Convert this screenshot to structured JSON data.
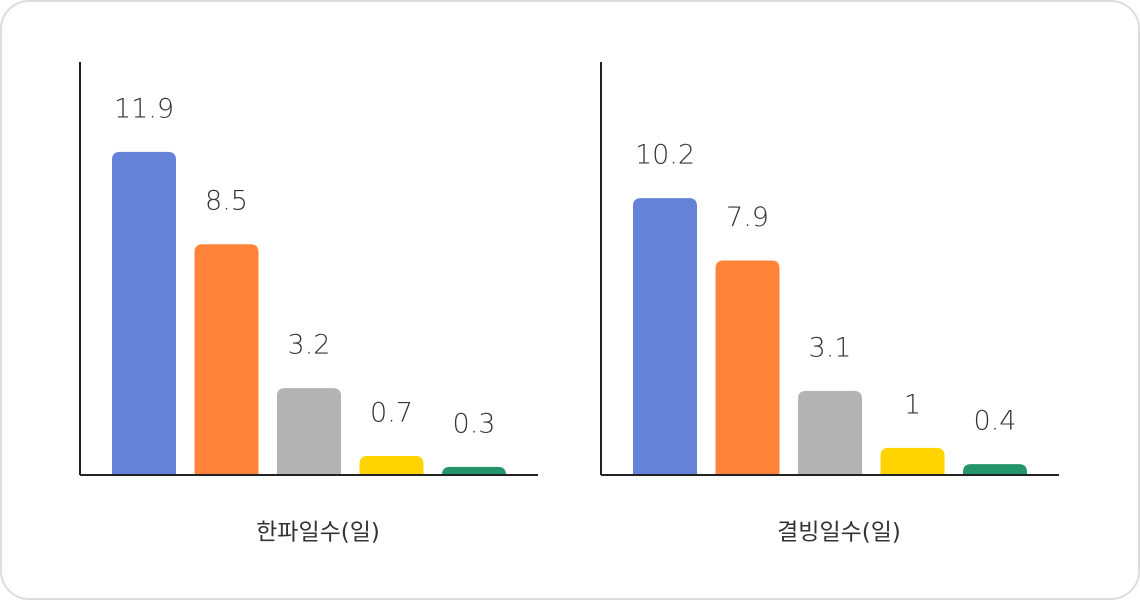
{
  "chart_data": [
    {
      "type": "bar",
      "xlabel": "한파일수(일)",
      "categories": [
        null,
        null,
        null,
        null,
        null
      ],
      "values": [
        11.9,
        8.5,
        3.2,
        0.7,
        0.3
      ],
      "colors": [
        "#6482d8",
        "#ff8439",
        "#b3b3b3",
        "#ffd400",
        "#24956a"
      ]
    },
    {
      "type": "bar",
      "xlabel": "결빙일수(일)",
      "categories": [
        null,
        null,
        null,
        null,
        null
      ],
      "values": [
        10.2,
        7.9,
        3.1,
        1,
        0.4
      ],
      "colors": [
        "#6482d8",
        "#ff8439",
        "#b3b3b3",
        "#ffd400",
        "#24956a"
      ]
    }
  ]
}
